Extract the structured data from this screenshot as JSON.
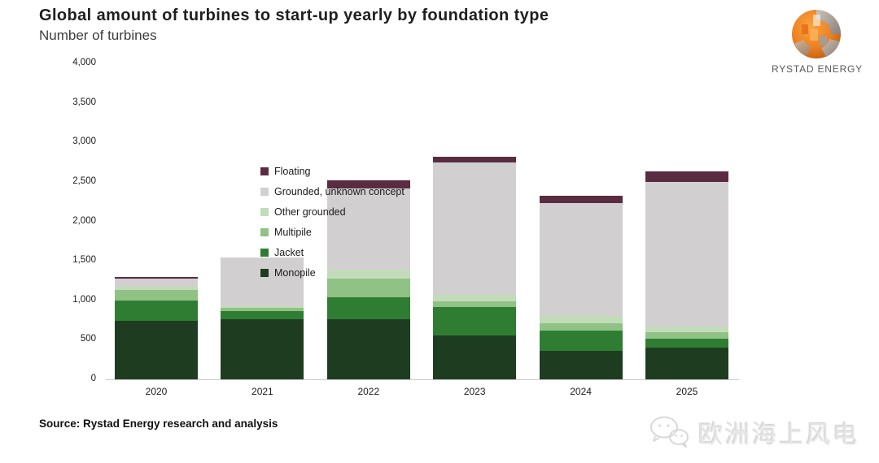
{
  "header": {
    "title": "Global amount of turbines to start-up yearly by foundation type",
    "subtitle": "Number of turbines"
  },
  "logo": {
    "brand": "RYSTAD ENERGY",
    "globe_orange": "#ef8122",
    "globe_gray": "#9c9ea1"
  },
  "footer": {
    "source": "Source: Rystad Energy research and analysis"
  },
  "watermark": {
    "icon": "wechat-icon",
    "text": "欧洲海上风电"
  },
  "chart_data": {
    "type": "bar",
    "stacked": true,
    "title": "Global amount of turbines to start-up yearly by foundation type",
    "ylabel": "Number of turbines",
    "xlabel": "",
    "ylim": [
      0,
      4000
    ],
    "grid": false,
    "legend_position": "top-left vertical",
    "y_tick_labels": [
      "0",
      "500",
      "1,000",
      "1,500",
      "2,000",
      "2,500",
      "3,000",
      "3,500",
      "4,000"
    ],
    "y_tick_values": [
      0,
      500,
      1000,
      1500,
      2000,
      2500,
      3000,
      3500,
      4000
    ],
    "categories": [
      "2020",
      "2021",
      "2022",
      "2023",
      "2024",
      "2025"
    ],
    "series": [
      {
        "name": "Floating",
        "color": "#5a2c42",
        "values": [
          20,
          0,
          100,
          70,
          90,
          130
        ]
      },
      {
        "name": "Grounded, unknown concept",
        "color": "#d1cfd0",
        "values": [
          110,
          610,
          1030,
          1680,
          1430,
          1830
        ]
      },
      {
        "name": "Other grounded",
        "color": "#c2dcba",
        "values": [
          40,
          25,
          120,
          80,
          90,
          75
        ]
      },
      {
        "name": "Multipile",
        "color": "#90c185",
        "values": [
          130,
          40,
          230,
          75,
          90,
          80
        ]
      },
      {
        "name": "Jacket",
        "color": "#2f7d33",
        "values": [
          265,
          100,
          280,
          360,
          265,
          110
        ]
      },
      {
        "name": "Monopile",
        "color": "#1e3d20",
        "values": [
          735,
          765,
          760,
          550,
          355,
          405
        ]
      }
    ],
    "totals": [
      1300,
      1540,
      2520,
      2815,
      2320,
      2630
    ]
  }
}
